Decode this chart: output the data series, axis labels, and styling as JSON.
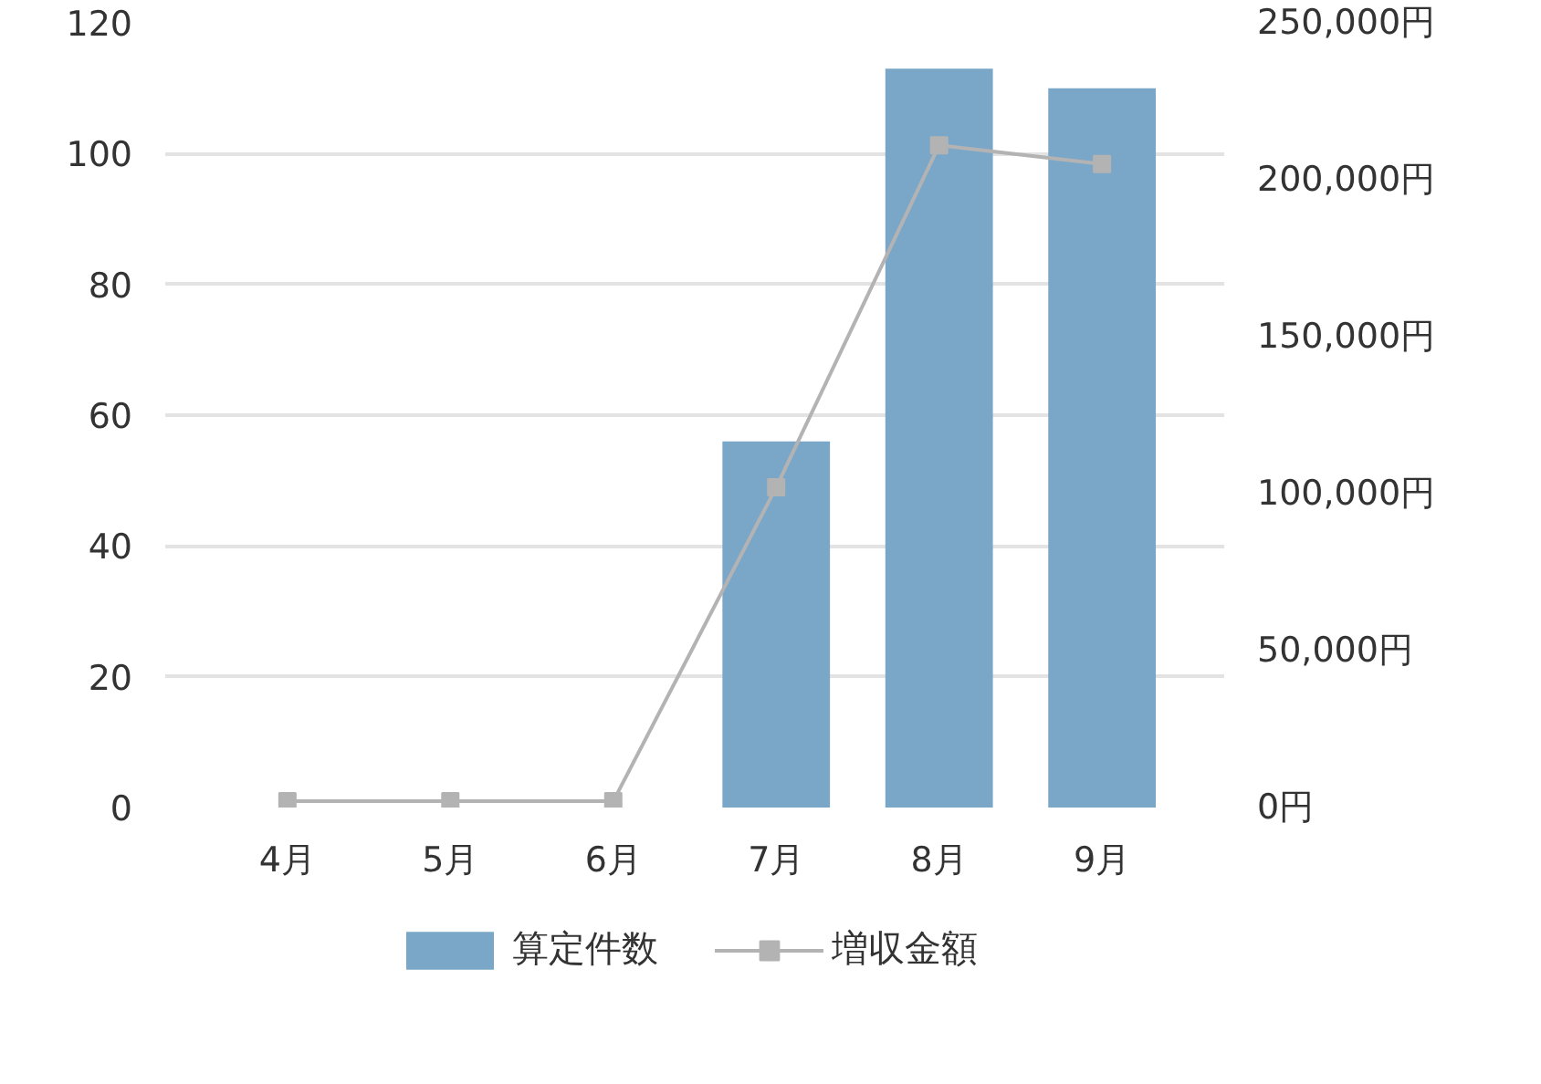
{
  "chart_data": {
    "type": "bar",
    "categories": [
      "4月",
      "5月",
      "6月",
      "7月",
      "8月",
      "9月"
    ],
    "series": [
      {
        "name": "算定件数",
        "color": "#7aa7c8",
        "values": [
          0,
          0,
          0,
          56,
          113,
          110
        ]
      },
      {
        "name": "増収金額",
        "type": "line",
        "axis": "y2",
        "color": "#b3b3b3",
        "marker": "square",
        "values": [
          2000,
          2000,
          2000,
          102000,
          211000,
          205000
        ]
      }
    ],
    "ylim": [
      0,
      120
    ],
    "yticks": [
      0,
      20,
      40,
      60,
      80,
      100,
      120
    ],
    "y2lim": [
      0,
      250000
    ],
    "y2ticks": [
      {
        "value": 0,
        "label": "0円"
      },
      {
        "value": 50000,
        "label": "50,000円"
      },
      {
        "value": 100000,
        "label": "100,000円"
      },
      {
        "value": 150000,
        "label": "150,000円"
      },
      {
        "value": 200000,
        "label": "200,000円"
      },
      {
        "value": 250000,
        "label": "250,000円"
      }
    ],
    "grid": "y",
    "legend": "bottom"
  }
}
